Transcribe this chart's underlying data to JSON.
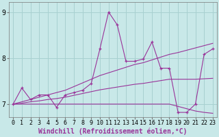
{
  "xlabel": "Windchill (Refroidissement éolien,°C)",
  "x_data": [
    0,
    1,
    2,
    3,
    4,
    5,
    6,
    7,
    8,
    9,
    10,
    11,
    12,
    13,
    14,
    15,
    16,
    17,
    18,
    19,
    20,
    21,
    22,
    23
  ],
  "y_main": [
    7.0,
    7.35,
    7.1,
    7.2,
    7.2,
    6.93,
    7.2,
    7.25,
    7.3,
    7.45,
    8.2,
    9.0,
    8.72,
    7.93,
    7.93,
    7.98,
    8.35,
    7.78,
    7.78,
    6.82,
    6.82,
    7.0,
    8.08,
    8.2
  ],
  "y_upper": [
    7.0,
    7.05,
    7.1,
    7.15,
    7.2,
    7.25,
    7.3,
    7.38,
    7.46,
    7.54,
    7.62,
    7.68,
    7.74,
    7.8,
    7.86,
    7.9,
    7.96,
    8.02,
    8.08,
    8.12,
    8.17,
    8.22,
    8.27,
    8.32
  ],
  "y_lower": [
    7.0,
    7.0,
    7.0,
    7.0,
    7.0,
    7.0,
    7.0,
    7.0,
    7.0,
    7.0,
    7.0,
    7.0,
    7.0,
    7.0,
    7.0,
    7.0,
    7.0,
    7.0,
    7.0,
    6.95,
    6.9,
    6.85,
    6.82,
    6.8
  ],
  "y_mid": [
    7.0,
    7.02,
    7.05,
    7.07,
    7.1,
    7.12,
    7.15,
    7.19,
    7.23,
    7.27,
    7.31,
    7.34,
    7.37,
    7.4,
    7.43,
    7.45,
    7.48,
    7.51,
    7.54,
    7.54,
    7.54,
    7.54,
    7.55,
    7.56
  ],
  "line_color": "#993399",
  "bg_color": "#c8e8e8",
  "grid_color": "#a8d0d0",
  "ylim_min": 6.72,
  "ylim_max": 9.22,
  "xlim_min": -0.5,
  "xlim_max": 23.5,
  "tick_fontsize": 6,
  "label_fontsize": 7
}
